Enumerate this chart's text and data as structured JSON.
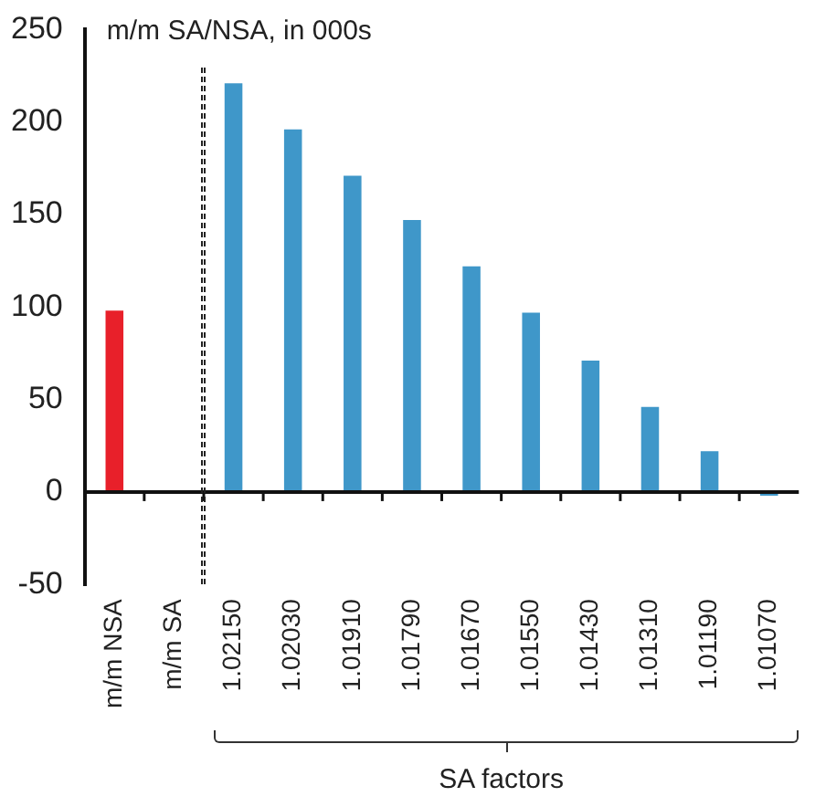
{
  "chart_data": {
    "type": "bar",
    "title": "m/m SA/NSA, in 000s",
    "categories": [
      "m/m NSA",
      "m/m SA",
      "1.02150",
      "1.02030",
      "1.01910",
      "1.01790",
      "1.01670",
      "1.01550",
      "1.01430",
      "1.01310",
      "1.01190",
      "1.01070"
    ],
    "values": [
      98,
      null,
      221,
      196,
      171,
      147,
      122,
      97,
      71,
      46,
      22,
      -2
    ],
    "colors": [
      "#e8202a",
      "#3f97c9",
      "#3f97c9",
      "#3f97c9",
      "#3f97c9",
      "#3f97c9",
      "#3f97c9",
      "#3f97c9",
      "#3f97c9",
      "#3f97c9",
      "#3f97c9",
      "#3f97c9"
    ],
    "ylim": [
      -50,
      250
    ],
    "yticks": [
      -50,
      0,
      50,
      100,
      150,
      200,
      250
    ],
    "grid": false,
    "legend": false,
    "annotations": [
      "SA factors"
    ]
  }
}
